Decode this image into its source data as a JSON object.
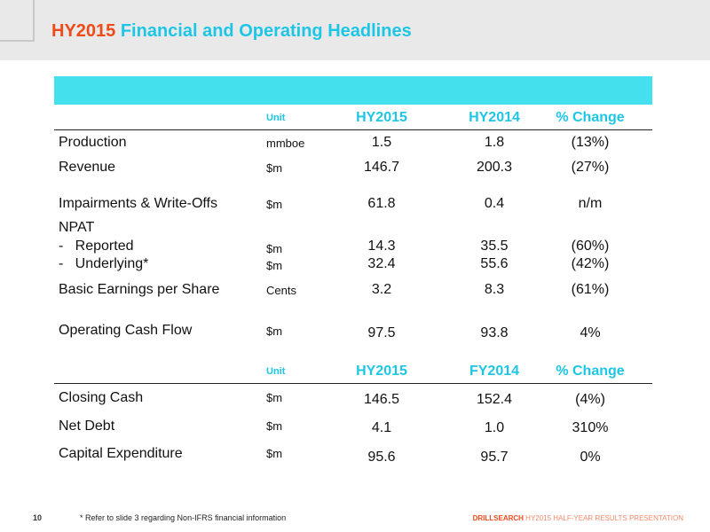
{
  "title": {
    "accent": "HY2015",
    "main": " Financial and Operating Headlines"
  },
  "table1": {
    "header": {
      "unit": "Unit",
      "col1": "HY2015",
      "col2": "HY2014",
      "col3": "% Change"
    },
    "rows": [
      {
        "label": "Production",
        "unit": "mmboe",
        "v1": "1.5",
        "v2": "1.8",
        "v3": "(13%)"
      },
      {
        "label": "Revenue",
        "unit": "$m",
        "v1": "146.7",
        "v2": "200.3",
        "v3": "(27%)"
      },
      {
        "label": "Impairments & Write-Offs",
        "unit": "$m",
        "v1": "61.8",
        "v2": "0.4",
        "v3": "n/m"
      },
      {
        "label": "NPAT"
      },
      {
        "label": "-   Reported",
        "unit": "$m",
        "v1": "14.3",
        "v2": "35.5",
        "v3": "(60%)"
      },
      {
        "label": "-   Underlying*",
        "unit": "$m",
        "v1": "32.4",
        "v2": "55.6",
        "v3": "(42%)"
      },
      {
        "label": "Basic Earnings per Share",
        "unit": "Cents",
        "v1": "3.2",
        "v2": "8.3",
        "v3": "(61%)"
      },
      {
        "label": "Operating Cash Flow",
        "unit": "$m",
        "v1": "97.5",
        "v2": "93.8",
        "v3": "4%"
      }
    ]
  },
  "table2": {
    "header": {
      "unit": "Unit",
      "col1": "HY2015",
      "col2": "FY2014",
      "col3": "% Change"
    },
    "rows": [
      {
        "label": "Closing Cash",
        "unit": "$m",
        "v1": "146.5",
        "v2": "152.4",
        "v3": "(4%)"
      },
      {
        "label": "Net Debt",
        "unit": "$m",
        "v1": "4.1",
        "v2": "1.0",
        "v3": "310%"
      },
      {
        "label": "Capital Expenditure",
        "unit": "$m",
        "v1": "95.6",
        "v2": "95.7",
        "v3": "0%"
      }
    ]
  },
  "footer": {
    "page_number": "10",
    "footnote": "* Refer to slide 3 regarding Non-IFRS financial information",
    "brand": "DRILLSEARCH",
    "presentation": " HY2015 HALF-YEAR RESULTS PRESENTATION"
  }
}
